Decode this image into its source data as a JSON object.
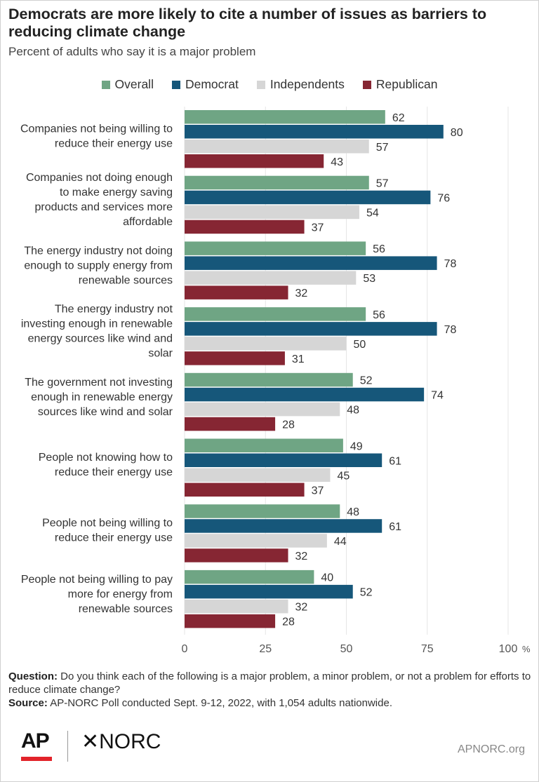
{
  "title": "Democrats are more likely to cite a number of issues as barriers to reducing climate change",
  "subtitle": "Percent of adults who say it is a major problem",
  "chart_data": {
    "type": "bar",
    "orientation": "horizontal",
    "categories": [
      [
        "Companies not being willing to",
        "reduce their energy use"
      ],
      [
        "Companies not doing enough",
        "to make energy saving",
        "products and services more",
        "affordable"
      ],
      [
        "The energy industry not doing",
        "enough to supply energy from",
        "renewable sources"
      ],
      [
        "The energy industry not",
        "investing enough in renewable",
        "energy sources like wind and",
        "solar"
      ],
      [
        "The government not investing",
        "enough in renewable energy",
        "sources like wind and solar"
      ],
      [
        "People not knowing how to",
        "reduce their energy use"
      ],
      [
        "People not being willing to",
        "reduce their energy use"
      ],
      [
        "People not being willing to pay",
        "more for energy from",
        "renewable sources"
      ]
    ],
    "series": [
      {
        "name": "Overall",
        "color": "#6fa584",
        "values": [
          62,
          57,
          56,
          56,
          52,
          49,
          48,
          40
        ]
      },
      {
        "name": "Democrat",
        "color": "#16577a",
        "values": [
          80,
          76,
          78,
          78,
          74,
          61,
          61,
          52
        ]
      },
      {
        "name": "Independents",
        "color": "#d6d6d6",
        "values": [
          57,
          54,
          53,
          50,
          48,
          45,
          44,
          32
        ]
      },
      {
        "name": "Republican",
        "color": "#862633",
        "values": [
          43,
          37,
          32,
          31,
          28,
          37,
          32,
          28
        ]
      }
    ],
    "xlim": [
      0,
      100
    ],
    "x_ticks": [
      0,
      25,
      50,
      75,
      100
    ],
    "x_tick_labels": [
      "0",
      "25",
      "50",
      "75",
      "100"
    ],
    "x_unit": "%",
    "grid": "vertical",
    "legend_position": "top"
  },
  "footer": {
    "question_label": "Question:",
    "question_text": "Do you think each of the following is a major problem, a minor problem, or not a problem for efforts to reduce climate change?",
    "source_label": "Source:",
    "source_text": "AP-NORC Poll conducted Sept. 9-12, 2022, with 1,054 adults nationwide."
  },
  "logos": {
    "ap": "AP",
    "norc": "NORC",
    "norc_mark": "✕"
  },
  "site": "APNORC.org"
}
